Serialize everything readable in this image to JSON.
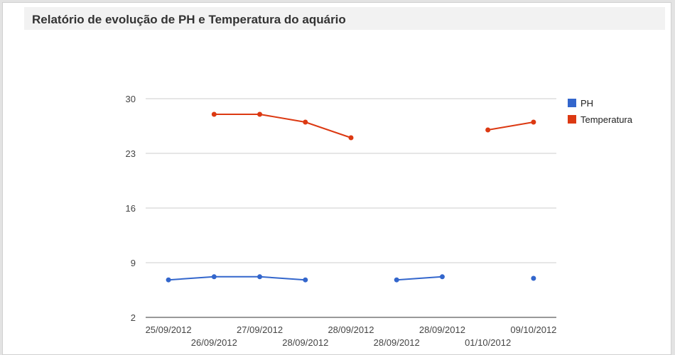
{
  "report": {
    "title": "Relatório de evolução de PH e Temperatura do aquário"
  },
  "chart_data": {
    "type": "line",
    "title": "",
    "xlabel": "",
    "ylabel": "",
    "categories": [
      "25/09/2012",
      "26/09/2012",
      "27/09/2012",
      "28/09/2012",
      "28/09/2012",
      "28/09/2012",
      "28/09/2012",
      "01/10/2012",
      "09/10/2012"
    ],
    "yticks": [
      2,
      9,
      16,
      23,
      30
    ],
    "ylim": [
      2,
      30
    ],
    "series": [
      {
        "name": "PH",
        "color": "#3366cc",
        "values": [
          6.8,
          7.2,
          7.2,
          6.8,
          null,
          6.8,
          7.2,
          null,
          7.0
        ]
      },
      {
        "name": "Temperatura",
        "color": "#dc3912",
        "values": [
          null,
          28,
          28,
          27,
          25,
          null,
          null,
          26,
          27
        ]
      }
    ],
    "grid": true,
    "legend": "right"
  }
}
